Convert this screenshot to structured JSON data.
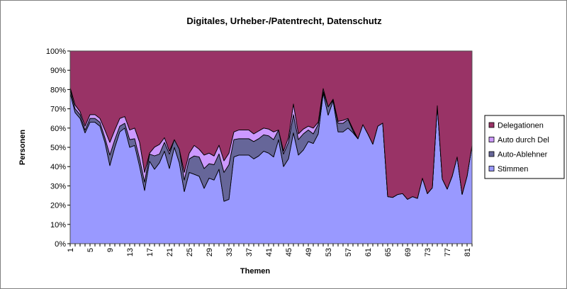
{
  "chart_data": {
    "type": "area",
    "stacking": "percent",
    "title": "Digitales, Urheber-/Patentrecht, Datenschutz",
    "xlabel": "Themen",
    "ylabel": "Personen",
    "ylim": [
      0,
      100
    ],
    "y_ticks": [
      "0%",
      "10%",
      "20%",
      "30%",
      "40%",
      "50%",
      "60%",
      "70%",
      "80%",
      "90%",
      "100%"
    ],
    "x_tick_labels": [
      "1",
      "5",
      "9",
      "13",
      "17",
      "21",
      "25",
      "29",
      "33",
      "37",
      "41",
      "45",
      "49",
      "53",
      "57",
      "61",
      "65",
      "69",
      "73",
      "77",
      "81"
    ],
    "grid": false,
    "legend_position": "right",
    "colors": {
      "Delegationen": "#993366",
      "Auto durch Del": "#cc99ff",
      "Auto-Ablehner": "#666699",
      "Stimmen": "#9999ff"
    },
    "legend": [
      "Delegationen",
      "Auto durch Del",
      "Auto-Ablehner",
      "Stimmen"
    ],
    "series": [
      {
        "name": "Stimmen",
        "values": [
          78,
          68,
          65,
          57.5,
          63,
          63,
          61,
          52.6,
          40.5,
          50,
          58,
          60,
          50,
          51,
          40,
          27.6,
          42.8,
          38.6,
          42,
          48,
          39,
          50,
          42,
          27,
          37,
          36,
          35,
          28.7,
          34,
          33,
          38.6,
          22,
          23,
          45,
          46,
          46,
          46,
          44,
          45.5,
          48,
          47,
          45,
          54,
          40,
          44,
          57.5,
          46,
          48.6,
          53,
          52,
          57,
          78,
          66.7,
          74,
          58,
          58,
          60,
          57.6,
          54.4,
          61.8,
          57,
          51.6,
          61,
          62.6,
          24.4,
          24,
          25.5,
          26,
          23,
          24.4,
          23.5,
          34,
          26,
          29,
          71.6,
          33.6,
          28.3,
          35,
          45,
          25.5,
          35,
          51
        ]
      },
      {
        "name": "Auto-Ablehner",
        "values": [
          2,
          2,
          2,
          1.5,
          2,
          2,
          2,
          2.4,
          5.5,
          4,
          3,
          2.5,
          4,
          3.5,
          4,
          4.4,
          3.7,
          7,
          4.5,
          4.6,
          7.5,
          4,
          7,
          6,
          7,
          9.5,
          10,
          10.3,
          7.5,
          8,
          8,
          15,
          18,
          9,
          8.5,
          8.5,
          8.5,
          9,
          9,
          8.5,
          9,
          9,
          5,
          6.5,
          8.6,
          9.5,
          8,
          8.4,
          6,
          5,
          5,
          1,
          4.3,
          0.5,
          4.5,
          4.5,
          4.5,
          1,
          0,
          0,
          0,
          0,
          0,
          0,
          0,
          0,
          0,
          0,
          0,
          0,
          0,
          0,
          0,
          0,
          0,
          0,
          0,
          0,
          0,
          0,
          0,
          0
        ]
      },
      {
        "name": "Auto durch Del",
        "values": [
          1,
          2,
          1.5,
          2,
          2,
          2,
          2,
          4,
          6.6,
          5,
          4,
          3.5,
          5,
          5.5,
          8.6,
          5,
          0.5,
          4.5,
          5,
          2.4,
          1.5,
          0,
          0,
          4,
          3,
          5.5,
          4,
          7,
          5.5,
          4.5,
          4.5,
          6,
          6,
          4,
          4.5,
          4.5,
          4.5,
          4,
          4,
          3.5,
          3.5,
          4,
          0,
          1.5,
          2.4,
          5.5,
          3,
          2.5,
          2,
          3,
          1,
          1.5,
          0,
          0.5,
          1,
          1.5,
          0.5,
          0.9,
          0,
          0,
          0,
          0,
          0,
          0,
          0,
          0,
          0,
          0,
          0,
          0,
          0,
          0,
          0,
          0,
          0,
          0,
          0,
          0,
          0,
          0,
          0,
          0
        ]
      },
      {
        "name": "Delegationen",
        "values": [
          19,
          28,
          31.5,
          39,
          33,
          33,
          35,
          41,
          47.4,
          41,
          35,
          34,
          41,
          40,
          47.4,
          63,
          53,
          49.9,
          48.5,
          45,
          52,
          46,
          51,
          63,
          53,
          49,
          51,
          54,
          53,
          54.5,
          48.9,
          57,
          53,
          42,
          41,
          41,
          41,
          43,
          41.5,
          40,
          40.5,
          42,
          41,
          52,
          45,
          27.5,
          43,
          40.5,
          39,
          40,
          37,
          19.5,
          29,
          25,
          36.5,
          36,
          35,
          40.5,
          45.6,
          38.2,
          43,
          48.4,
          39,
          37.4,
          75.6,
          76,
          74.5,
          74,
          77,
          75.6,
          76.5,
          66,
          74,
          71,
          28.4,
          66.4,
          71.7,
          65,
          55,
          74.5,
          65,
          49
        ]
      }
    ]
  }
}
